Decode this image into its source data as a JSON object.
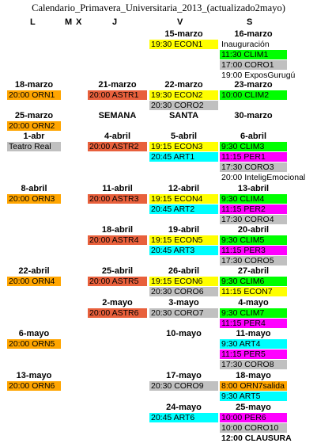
{
  "title": "Calendario_Primavera_Universitaria_2013_(actualizado2mayo)",
  "days": [
    "L",
    "M",
    "X",
    "J",
    "V",
    "S"
  ],
  "colors": {
    "ORN": "#ffa500",
    "ASTR": "#e8603c",
    "ECON": "#ffff00",
    "CORO": "#c0c0c0",
    "CLIM": "#00ff00",
    "ART": "#00ffff",
    "PER": "#ff00ff",
    "none": "#ffffff"
  },
  "cells": [
    {
      "day": "V",
      "label": "15-marzo",
      "events": [
        {
          "text": "19:30 ECON1",
          "cat": "ECON"
        }
      ]
    },
    {
      "day": "S",
      "label": "16-marzo",
      "events": [
        {
          "text": "Inauguración",
          "cat": "none"
        },
        {
          "text": "11:30 CLIM1",
          "cat": "CLIM"
        },
        {
          "text": "17:00 CORO1",
          "cat": "CORO"
        },
        {
          "text": "19:00 ExposGurugú",
          "cat": "none"
        }
      ]
    },
    {
      "day": "L",
      "label": "18-marzo",
      "events": [
        {
          "text": "20:00 ORN1",
          "cat": "ORN"
        }
      ]
    },
    {
      "day": "J",
      "label": "21-marzo",
      "events": [
        {
          "text": "20:00 ASTR1",
          "cat": "ASTR"
        }
      ]
    },
    {
      "day": "V",
      "label": "22-marzo",
      "events": [
        {
          "text": "19:30 ECON2",
          "cat": "ECON"
        },
        {
          "text": "20:30 CORO2",
          "cat": "CORO"
        }
      ]
    },
    {
      "day": "S",
      "label": "23-marzo",
      "events": [
        {
          "text": "10:00 CLIM2",
          "cat": "CLIM"
        }
      ]
    },
    {
      "day": "L",
      "label": "25-marzo",
      "events": [
        {
          "text": "20:00 ORN2",
          "cat": "ORN"
        }
      ]
    },
    {
      "day": "J",
      "label": "SEMANA",
      "events": []
    },
    {
      "day": "V",
      "label": "SANTA",
      "events": []
    },
    {
      "day": "S",
      "label": "30-marzo",
      "events": []
    },
    {
      "day": "L",
      "label": "1-abr",
      "events": [
        {
          "text": "Teatro Real",
          "cat": "CORO"
        }
      ]
    },
    {
      "day": "J",
      "label": "4-abril",
      "events": [
        {
          "text": "20:00 ASTR2",
          "cat": "ASTR"
        }
      ]
    },
    {
      "day": "V",
      "label": "5-abril",
      "events": [
        {
          "text": "19:15 ECON3",
          "cat": "ECON"
        },
        {
          "text": "20:45 ART1",
          "cat": "ART"
        }
      ]
    },
    {
      "day": "S",
      "label": "6-abril",
      "events": [
        {
          "text": "9:30 CLIM3",
          "cat": "CLIM"
        },
        {
          "text": "11:15 PER1",
          "cat": "PER"
        },
        {
          "text": "17:30 CORO3",
          "cat": "CORO"
        },
        {
          "text": "20:00 InteligEmocional",
          "cat": "none"
        }
      ]
    },
    {
      "day": "L",
      "label": "8-abril",
      "events": [
        {
          "text": "20:00 ORN3",
          "cat": "ORN"
        }
      ]
    },
    {
      "day": "J",
      "label": "11-abril",
      "events": [
        {
          "text": "20:00 ASTR3",
          "cat": "ASTR"
        }
      ]
    },
    {
      "day": "V",
      "label": "12-abril",
      "events": [
        {
          "text": "19:15 ECON4",
          "cat": "ECON"
        },
        {
          "text": "20:45 ART2",
          "cat": "ART"
        }
      ]
    },
    {
      "day": "S",
      "label": "13-abril",
      "events": [
        {
          "text": "9:30 CLIM4",
          "cat": "CLIM"
        },
        {
          "text": "11:15 PER2",
          "cat": "PER"
        },
        {
          "text": "17:30 CORO4",
          "cat": "CORO"
        }
      ]
    },
    {
      "day": "J",
      "label": "18-abril",
      "events": [
        {
          "text": "20:00 ASTR4",
          "cat": "ASTR"
        }
      ]
    },
    {
      "day": "V",
      "label": "19-abril",
      "events": [
        {
          "text": "19:15 ECON5",
          "cat": "ECON"
        },
        {
          "text": "20:45 ART3",
          "cat": "ART"
        }
      ]
    },
    {
      "day": "S",
      "label": "20-abril",
      "events": [
        {
          "text": "9:30 CLIM5",
          "cat": "CLIM"
        },
        {
          "text": "11:15 PER3",
          "cat": "PER"
        },
        {
          "text": "17:30 CORO5",
          "cat": "CORO"
        }
      ]
    },
    {
      "day": "L",
      "label": "22-abril",
      "events": [
        {
          "text": "20:00 ORN4",
          "cat": "ORN"
        }
      ]
    },
    {
      "day": "J",
      "label": "25-abril",
      "events": [
        {
          "text": "20:00 ASTR5",
          "cat": "ASTR"
        }
      ]
    },
    {
      "day": "V",
      "label": "26-abril",
      "events": [
        {
          "text": "19:15 ECON6",
          "cat": "ECON"
        },
        {
          "text": "20:30 CORO6",
          "cat": "CORO"
        }
      ]
    },
    {
      "day": "S",
      "label": "27-abril",
      "events": [
        {
          "text": "9:30 CLIM6",
          "cat": "CLIM"
        },
        {
          "text": "11:15 ECON7",
          "cat": "ECON"
        }
      ]
    },
    {
      "day": "J",
      "label": "2-mayo",
      "events": [
        {
          "text": "20:00 ASTR6",
          "cat": "ASTR"
        }
      ]
    },
    {
      "day": "V",
      "label": "3-mayo",
      "events": [
        {
          "text": "20:30 CORO7",
          "cat": "CORO"
        }
      ]
    },
    {
      "day": "S",
      "label": "4-mayo",
      "events": [
        {
          "text": "9:30 CLIM7",
          "cat": "CLIM"
        },
        {
          "text": "11:15 PER4",
          "cat": "PER"
        }
      ]
    },
    {
      "day": "L",
      "label": "6-mayo",
      "events": [
        {
          "text": "20:00 ORN5",
          "cat": "ORN"
        }
      ]
    },
    {
      "day": "V",
      "label": "10-mayo",
      "events": []
    },
    {
      "day": "S",
      "label": "11-mayo",
      "events": [
        {
          "text": "9:30 ART4",
          "cat": "ART"
        },
        {
          "text": "11:15 PER5",
          "cat": "PER"
        },
        {
          "text": "17:30 CORO8",
          "cat": "CORO"
        }
      ]
    },
    {
      "day": "L",
      "label": "13-mayo",
      "events": [
        {
          "text": "20:00 ORN6",
          "cat": "ORN"
        }
      ]
    },
    {
      "day": "V",
      "label": "17-mayo",
      "events": [
        {
          "text": "20:30 CORO9",
          "cat": "CORO"
        }
      ]
    },
    {
      "day": "S",
      "label": "18-mayo",
      "events": [
        {
          "text": "8:00 ORN7salida",
          "cat": "ORN"
        },
        {
          "text": "9:30 ART5",
          "cat": "ART"
        }
      ]
    },
    {
      "day": "V",
      "label": "24-mayo",
      "events": [
        {
          "text": "20:45 ART6",
          "cat": "ART"
        }
      ]
    },
    {
      "day": "S",
      "label": "25-mayo",
      "events": [
        {
          "text": "10:00 PER6",
          "cat": "PER"
        },
        {
          "text": "10:00 CORO10",
          "cat": "CORO"
        },
        {
          "text": "12:00 CLAUSURA",
          "cat": "none",
          "bold": true
        }
      ]
    }
  ]
}
